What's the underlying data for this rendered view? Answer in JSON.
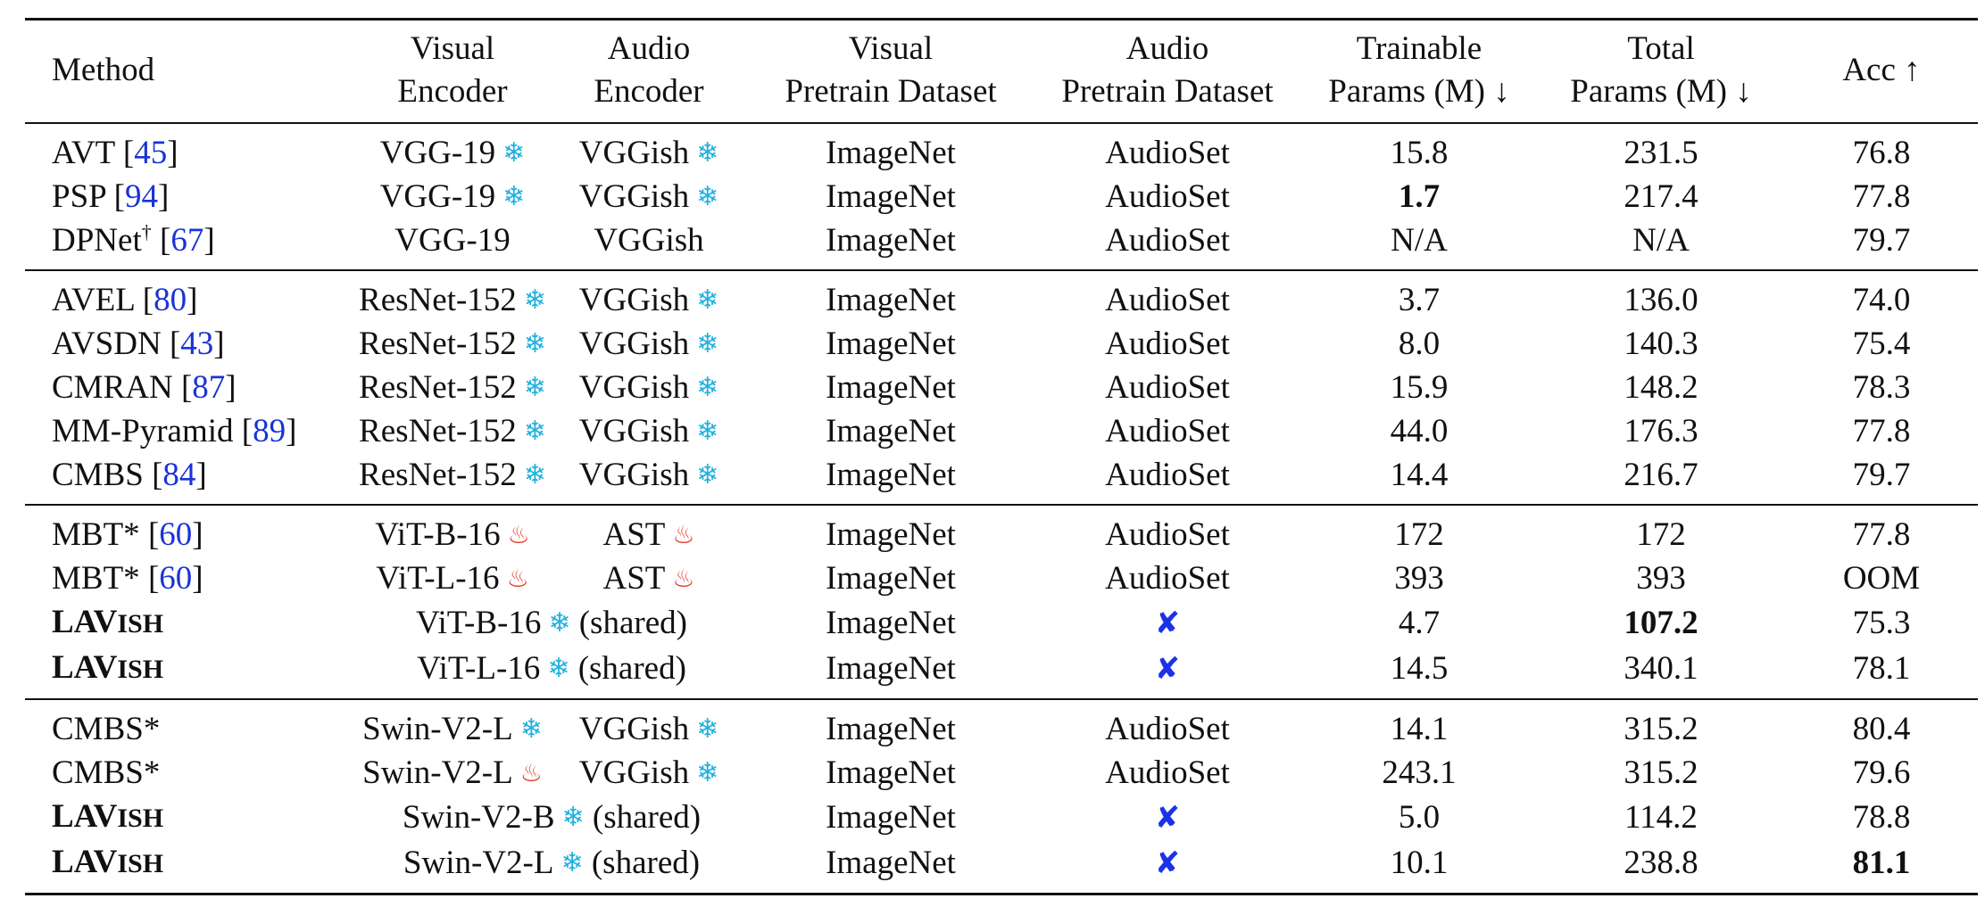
{
  "header": {
    "method": "Method",
    "visual_encoder": [
      "Visual",
      "Encoder"
    ],
    "audio_encoder": [
      "Audio",
      "Encoder"
    ],
    "visual_dataset": [
      "Visual",
      "Pretrain Dataset"
    ],
    "audio_dataset": [
      "Audio",
      "Pretrain Dataset"
    ],
    "trainable": [
      "Trainable",
      "Params (M) ↓"
    ],
    "total": [
      "Total",
      "Params (M) ↓"
    ],
    "acc": "Acc ↑"
  },
  "icons": {
    "frozen": "snowflake-icon",
    "tuned": "flame-icon",
    "none": "cross-mark-icon"
  },
  "colors": {
    "citation": "#1a33d6",
    "frozen": "#20b0e0",
    "tuned": "#e03a2a",
    "cross": "#1a33e6"
  },
  "glyphs": {
    "snow": "❄",
    "fire": "♨",
    "cross": "✘"
  },
  "lavish": {
    "lead": "LAV",
    "rest": "ISH"
  },
  "shared": "(shared)",
  "groups": [
    [
      {
        "name": "AVT",
        "sup": "",
        "cite": "45",
        "ve": "VGG-19",
        "ve_icon": "snow",
        "ae": "VGGish",
        "ae_icon": "snow",
        "vd": "ImageNet",
        "ad": "AudioSet",
        "tp": "15.8",
        "tot": "231.5",
        "acc": "76.8"
      },
      {
        "name": "PSP",
        "sup": "",
        "cite": "94",
        "ve": "VGG-19",
        "ve_icon": "snow",
        "ae": "VGGish",
        "ae_icon": "snow",
        "vd": "ImageNet",
        "ad": "AudioSet",
        "tp": "1.7",
        "tp_bold": true,
        "tot": "217.4",
        "acc": "77.8"
      },
      {
        "name": "DPNet",
        "sup": "†",
        "cite": "67",
        "ve": "VGG-19",
        "ve_icon": "",
        "ae": "VGGish",
        "ae_icon": "",
        "vd": "ImageNet",
        "ad": "AudioSet",
        "tp": "N/A",
        "tot": "N/A",
        "acc": "79.7"
      }
    ],
    [
      {
        "name": "AVEL",
        "sup": "",
        "cite": "80",
        "ve": "ResNet-152",
        "ve_icon": "snow",
        "ae": "VGGish",
        "ae_icon": "snow",
        "vd": "ImageNet",
        "ad": "AudioSet",
        "tp": "3.7",
        "tot": "136.0",
        "acc": "74.0"
      },
      {
        "name": "AVSDN",
        "sup": "",
        "cite": "43",
        "ve": "ResNet-152",
        "ve_icon": "snow",
        "ae": "VGGish",
        "ae_icon": "snow",
        "vd": "ImageNet",
        "ad": "AudioSet",
        "tp": "8.0",
        "tot": "140.3",
        "acc": "75.4"
      },
      {
        "name": "CMRAN",
        "sup": "",
        "cite": "87",
        "ve": "ResNet-152",
        "ve_icon": "snow",
        "ae": "VGGish",
        "ae_icon": "snow",
        "vd": "ImageNet",
        "ad": "AudioSet",
        "tp": "15.9",
        "tot": "148.2",
        "acc": "78.3"
      },
      {
        "name": "MM-Pyramid",
        "sup": "",
        "cite": "89",
        "ve": "ResNet-152",
        "ve_icon": "snow",
        "ae": "VGGish",
        "ae_icon": "snow",
        "vd": "ImageNet",
        "ad": "AudioSet",
        "tp": "44.0",
        "tot": "176.3",
        "acc": "77.8"
      },
      {
        "name": "CMBS",
        "sup": "",
        "cite": "84",
        "ve": "ResNet-152",
        "ve_icon": "snow",
        "ae": "VGGish",
        "ae_icon": "snow",
        "vd": "ImageNet",
        "ad": "AudioSet",
        "tp": "14.4",
        "tot": "216.7",
        "acc": "79.7"
      }
    ],
    [
      {
        "name": "MBT*",
        "sup": "",
        "cite": "60",
        "ve": "ViT-B-16",
        "ve_icon": "fire",
        "ae": "AST",
        "ae_icon": "fire",
        "vd": "ImageNet",
        "ad": "AudioSet",
        "tp": "172",
        "tot": "172",
        "acc": "77.8"
      },
      {
        "name": "MBT*",
        "sup": "",
        "cite": "60",
        "ve": "ViT-L-16",
        "ve_icon": "fire",
        "ae": "AST",
        "ae_icon": "fire",
        "vd": "ImageNet",
        "ad": "AudioSet",
        "tp": "393",
        "tot": "393",
        "acc": "OOM"
      },
      {
        "lavish": true,
        "shared_enc": "ViT-B-16",
        "vd": "ImageNet",
        "ad_cross": true,
        "tp": "4.7",
        "tot": "107.2",
        "tot_bold": true,
        "acc": "75.3"
      },
      {
        "lavish": true,
        "shared_enc": "ViT-L-16",
        "vd": "ImageNet",
        "ad_cross": true,
        "tp": "14.5",
        "tot": "340.1",
        "acc": "78.1"
      }
    ],
    [
      {
        "name": "CMBS*",
        "sup": "",
        "cite": "",
        "ve": "Swin-V2-L",
        "ve_icon": "snow",
        "ae": "VGGish",
        "ae_icon": "snow",
        "vd": "ImageNet",
        "ad": "AudioSet",
        "tp": "14.1",
        "tot": "315.2",
        "acc": "80.4"
      },
      {
        "name": "CMBS*",
        "sup": "",
        "cite": "",
        "ve": "Swin-V2-L",
        "ve_icon": "fire",
        "ae": "VGGish",
        "ae_icon": "snow",
        "vd": "ImageNet",
        "ad": "AudioSet",
        "tp": "243.1",
        "tot": "315.2",
        "acc": "79.6"
      },
      {
        "lavish": true,
        "shared_enc": "Swin-V2-B",
        "vd": "ImageNet",
        "ad_cross": true,
        "tp": "5.0",
        "tot": "114.2",
        "acc": "78.8"
      },
      {
        "lavish": true,
        "shared_enc": "Swin-V2-L",
        "vd": "ImageNet",
        "ad_cross": true,
        "tp": "10.1",
        "tot": "238.8",
        "acc": "81.1",
        "acc_bold": true
      }
    ]
  ]
}
